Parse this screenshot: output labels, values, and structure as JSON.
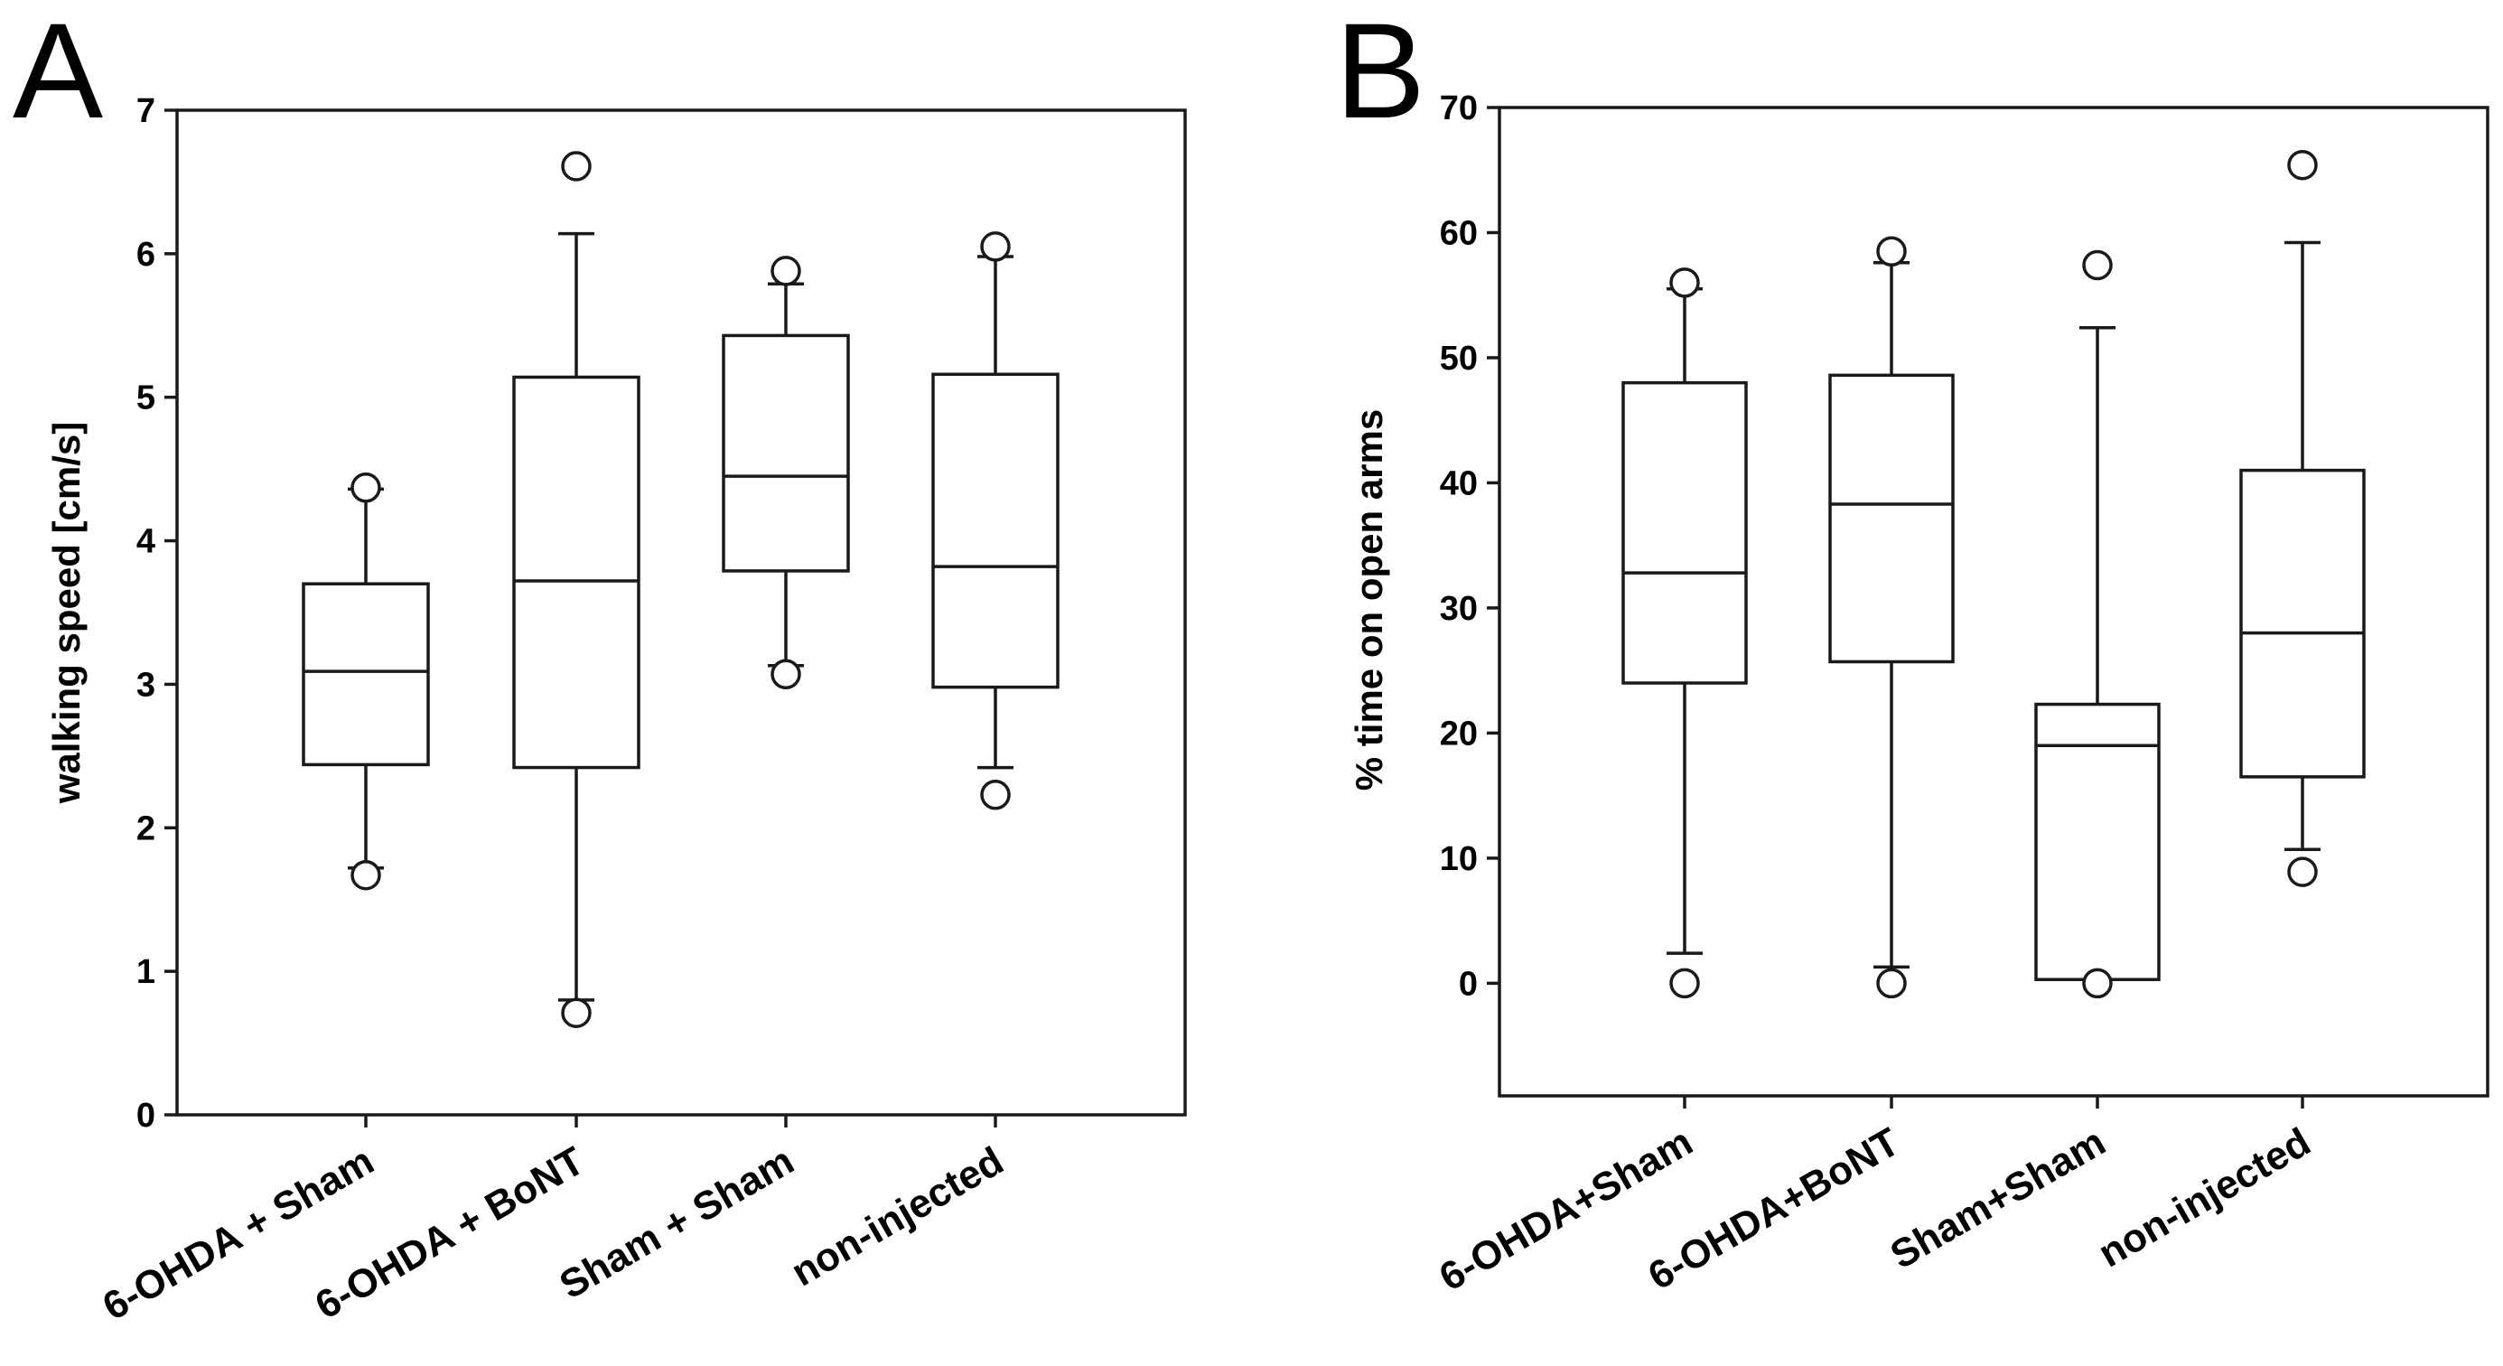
{
  "chart_data": [
    {
      "type": "box",
      "panel_label": "A",
      "title": "",
      "xlabel": "",
      "ylabel": "walking speed [cm/s]",
      "ylim": [
        0,
        7
      ],
      "yticks": [
        0,
        1,
        2,
        3,
        4,
        5,
        6,
        7
      ],
      "categories": [
        "6-OHDA + Sham",
        "6-OHDA + BoNT",
        "Sham + Sham",
        "non-injected"
      ],
      "boxes": [
        {
          "whisker_low": 1.72,
          "q1": 2.44,
          "median": 3.09,
          "q3": 3.7,
          "whisker_high": 4.36,
          "outliers": [
            1.67,
            4.37
          ]
        },
        {
          "whisker_low": 0.8,
          "q1": 2.42,
          "median": 3.72,
          "q3": 5.14,
          "whisker_high": 6.14,
          "outliers": [
            0.71,
            6.61
          ]
        },
        {
          "whisker_low": 3.13,
          "q1": 3.79,
          "median": 4.45,
          "q3": 5.43,
          "whisker_high": 5.79,
          "outliers": [
            3.07,
            5.88
          ]
        },
        {
          "whisker_low": 2.42,
          "q1": 2.98,
          "median": 3.82,
          "q3": 5.16,
          "whisker_high": 5.98,
          "outliers": [
            2.23,
            6.05
          ]
        }
      ]
    },
    {
      "type": "box",
      "panel_label": "B",
      "title": "",
      "xlabel": "",
      "ylabel": "% time on open arms",
      "ylim": [
        -9,
        70
      ],
      "yticks": [
        0,
        10,
        20,
        30,
        40,
        50,
        60,
        70
      ],
      "categories": [
        "6-OHDA+Sham",
        "6-OHDA+BoNT",
        "Sham+Sham",
        "non-injected"
      ],
      "boxes": [
        {
          "whisker_low": 2.4,
          "q1": 24.0,
          "median": 32.8,
          "q3": 48.0,
          "whisker_high": 55.5,
          "outliers": [
            0.0,
            56.0
          ]
        },
        {
          "whisker_low": 1.3,
          "q1": 25.7,
          "median": 38.3,
          "q3": 48.6,
          "whisker_high": 57.6,
          "outliers": [
            0.0,
            58.5
          ]
        },
        {
          "whisker_low": 0.3,
          "q1": 0.3,
          "median": 19.0,
          "q3": 22.3,
          "whisker_high": 52.4,
          "outliers": [
            0.0,
            57.4
          ]
        },
        {
          "whisker_low": 10.7,
          "q1": 16.5,
          "median": 28.0,
          "q3": 41.0,
          "whisker_high": 59.2,
          "outliers": [
            8.9,
            65.4
          ]
        }
      ]
    }
  ]
}
